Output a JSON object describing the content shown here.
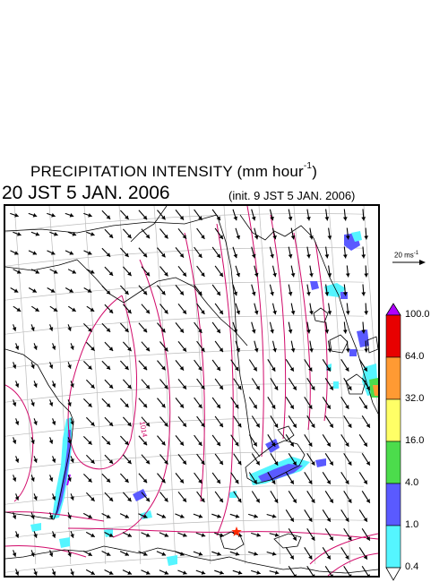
{
  "title": {
    "main": "PRECIPITATION INTENSITY (mm hour",
    "superscript": "-1",
    "close": ")"
  },
  "valid_time": "20 JST 5 JAN. 2006",
  "init_time": "(init. 9 JST 5 JAN. 2006)",
  "reference_vector": {
    "label": "20 ms",
    "superscript": "-1"
  },
  "colorbar": {
    "labels": [
      "100.0",
      "64.0",
      "32.0",
      "16.0",
      "4.0",
      "1.0",
      "0.4"
    ],
    "colors": [
      "#e80000",
      "#ff9a33",
      "#ffff66",
      "#4cdc4c",
      "#5a5aff",
      "#55f5ff"
    ],
    "over_color": "#b000ff",
    "under_color": "#ffffff"
  },
  "map": {
    "contour_label": "1014",
    "marker": "star",
    "marker_color": "#ff2a00",
    "coast_color": "#000000",
    "contour_color": "#d10a6a",
    "grid_color": "#bbbbbb"
  }
}
